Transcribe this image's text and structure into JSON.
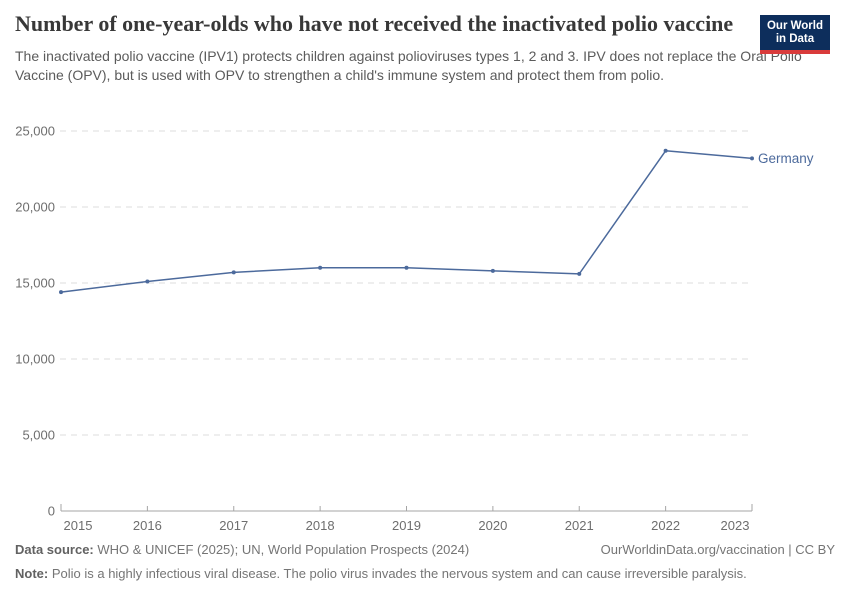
{
  "header": {
    "title": "Number of one-year-olds who have not received the inactivated polio vaccine",
    "subtitle": "The inactivated polio vaccine (IPV1) protects children against polioviruses types 1, 2 and 3. IPV does not replace the Oral Polio Vaccine (OPV), but is used with OPV to strengthen a child's immune system and protect them from polio.",
    "logo": {
      "line1": "Our World",
      "line2": "in Data",
      "bg_color": "#0d2e5c",
      "bar_color": "#d93b3b"
    }
  },
  "chart_data": {
    "type": "line",
    "title": "Number of one-year-olds who have not received the inactivated polio vaccine",
    "x": [
      2015,
      2016,
      2017,
      2018,
      2019,
      2020,
      2021,
      2022,
      2023
    ],
    "series": [
      {
        "name": "Germany",
        "color": "#4c6a9c",
        "values": [
          14400,
          15100,
          15700,
          16000,
          16000,
          15800,
          15600,
          23700,
          23200
        ]
      }
    ],
    "ylim": [
      0,
      25000
    ],
    "yticks": [
      0,
      5000,
      10000,
      15000,
      20000,
      25000
    ],
    "ytick_labels": [
      "0",
      "5,000",
      "10,000",
      "15,000",
      "20,000",
      "25,000"
    ],
    "grid": "horizontal-dashed",
    "legend": "line-end-label",
    "axis_text_color": "#6e6e6e",
    "grid_color": "#dcdcdc",
    "axis_line_color": "#a5a5a5",
    "marker_radius": 2
  },
  "footer": {
    "source_label": "Data source:",
    "source_text": " WHO & UNICEF (2025); UN, World Population Prospects (2024)",
    "link_text": "OurWorldinData.org/vaccination | CC BY",
    "note_label": "Note:",
    "note_text": " Polio is a highly infectious viral disease. The polio virus invades the nervous system and can cause irreversible paralysis."
  }
}
